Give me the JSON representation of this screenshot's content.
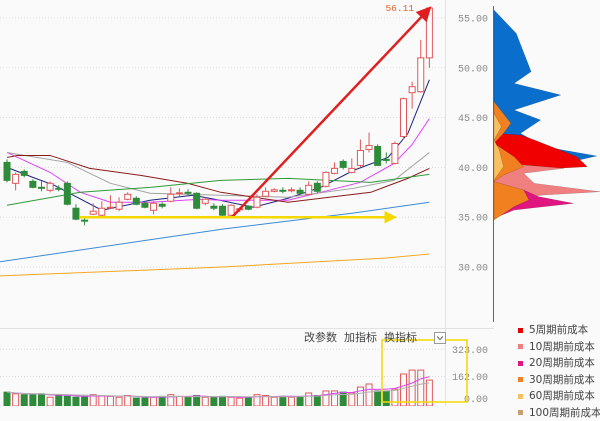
{
  "price_axis": {
    "ticks": [
      "55.00",
      "50.00",
      "45.00",
      "40.00",
      "35.00",
      "30.00"
    ],
    "values": [
      55,
      50,
      45,
      40,
      35,
      30
    ]
  },
  "volume_axis": {
    "ticks": [
      "323.00",
      "162.00",
      "0.00"
    ],
    "values": [
      323,
      162,
      0
    ]
  },
  "high_label": "56.11",
  "toolbar": {
    "modify_params": "改参数",
    "add_indicator": "加指标",
    "switch_indicator": "换指标",
    "dropdown_icon": "chevron-down-icon"
  },
  "legend": [
    {
      "label": "5周期前成本",
      "color": "#e00000"
    },
    {
      "label": "10周期前成本",
      "color": "#f08080"
    },
    {
      "label": "20周期前成本",
      "color": "#e0157f"
    },
    {
      "label": "30周期前成本",
      "color": "#f08020"
    },
    {
      "label": "60周期前成本",
      "color": "#f8c060"
    },
    {
      "label": "100周期前成本",
      "color": "#c8a070"
    }
  ],
  "colors": {
    "up": "#e0575a",
    "down": "#2e8b3a",
    "annotation_red": "#e02020",
    "annotation_yellow": "#f5d800",
    "profile_blue": "#0a6fcc"
  },
  "chart_data": {
    "type": "candlestick",
    "ohlc": [
      [
        40.5,
        40.8,
        38.5,
        38.7
      ],
      [
        38.4,
        39.5,
        37.7,
        39.3
      ],
      [
        39.6,
        39.8,
        39.0,
        39.2
      ],
      [
        38.6,
        38.8,
        37.9,
        38.0
      ],
      [
        38.0,
        38.6,
        37.6,
        37.9
      ],
      [
        37.7,
        38.6,
        37.5,
        38.4
      ],
      [
        37.9,
        38.2,
        37.6,
        37.8
      ],
      [
        38.4,
        38.6,
        36.2,
        36.3
      ],
      [
        35.9,
        36.3,
        34.7,
        34.8
      ],
      [
        34.7,
        35.0,
        34.2,
        34.6
      ],
      [
        35.3,
        36.4,
        35.2,
        35.6
      ],
      [
        35.2,
        36.6,
        35.0,
        35.9
      ],
      [
        35.9,
        37.2,
        35.8,
        36.0
      ],
      [
        35.8,
        37.0,
        35.6,
        36.5
      ],
      [
        36.8,
        37.5,
        36.7,
        37.3
      ],
      [
        36.9,
        37.1,
        36.2,
        36.3
      ],
      [
        36.4,
        36.6,
        35.9,
        36.0
      ],
      [
        35.7,
        36.6,
        35.3,
        36.4
      ],
      [
        36.3,
        36.5,
        35.9,
        36.1
      ],
      [
        36.6,
        38.0,
        36.5,
        37.3
      ],
      [
        37.4,
        37.9,
        37.1,
        37.45
      ],
      [
        37.5,
        37.8,
        37.2,
        37.45
      ],
      [
        37.4,
        37.5,
        35.8,
        35.9
      ],
      [
        36.4,
        37.0,
        36.2,
        36.8
      ],
      [
        36.1,
        36.4,
        35.7,
        35.9
      ],
      [
        36.1,
        36.3,
        35.0,
        35.2
      ],
      [
        35.2,
        36.3,
        35.1,
        36.2
      ],
      [
        35.8,
        36.0,
        35.5,
        35.85
      ],
      [
        36.1,
        36.2,
        35.7,
        35.8
      ],
      [
        36.0,
        37.3,
        35.9,
        37.0
      ],
      [
        37.1,
        38.0,
        37.0,
        37.6
      ],
      [
        37.6,
        37.9,
        37.5,
        37.75
      ],
      [
        37.7,
        38.0,
        37.4,
        37.65
      ],
      [
        37.7,
        38.0,
        37.5,
        37.75
      ],
      [
        37.7,
        38.0,
        37.3,
        37.4
      ],
      [
        37.3,
        38.6,
        37.2,
        38.2
      ],
      [
        38.4,
        38.6,
        37.4,
        37.6
      ],
      [
        38.1,
        39.6,
        38.0,
        39.5
      ],
      [
        39.4,
        40.5,
        39.3,
        39.9
      ],
      [
        40.6,
        40.8,
        39.8,
        40.0
      ],
      [
        39.5,
        40.9,
        39.4,
        39.9
      ],
      [
        40.2,
        42.8,
        40.0,
        41.7
      ],
      [
        41.8,
        43.5,
        41.5,
        42.2
      ],
      [
        42.1,
        42.3,
        40.2,
        40.2
      ],
      [
        40.8,
        41.5,
        40.4,
        40.7
      ],
      [
        40.4,
        42.6,
        40.3,
        42.4
      ],
      [
        43.1,
        47.0,
        42.8,
        46.9
      ],
      [
        47.5,
        48.6,
        45.9,
        48.1
      ],
      [
        47.6,
        52.8,
        47.5,
        51.0
      ],
      [
        51.0,
        56.11,
        50.0,
        56.0
      ]
    ],
    "volume": [
      70,
      60,
      55,
      55,
      60,
      40,
      55,
      45,
      40,
      45,
      55,
      50,
      45,
      40,
      50,
      35,
      35,
      40,
      45,
      55,
      45,
      40,
      50,
      40,
      40,
      45,
      40,
      35,
      40,
      55,
      50,
      40,
      45,
      40,
      45,
      65,
      50,
      77,
      77,
      70,
      65,
      100,
      118,
      77,
      77,
      88,
      177,
      200,
      200,
      141
    ],
    "ma_lines": [
      {
        "color": "#1a237e",
        "points": [
          [
            0,
            40.0
          ],
          [
            3,
            39.0
          ],
          [
            5.5,
            38.2
          ],
          [
            11,
            35.7
          ],
          [
            16.6,
            36.7
          ],
          [
            21.6,
            37.2
          ],
          [
            24.7,
            36.7
          ],
          [
            28.6,
            36.0
          ],
          [
            32.6,
            36.9
          ],
          [
            36.4,
            38.0
          ],
          [
            40.2,
            39.7
          ],
          [
            44.2,
            41.0
          ],
          [
            46.5,
            43.4
          ],
          [
            49,
            48.8
          ]
        ]
      },
      {
        "color": "#e040fb",
        "points": [
          [
            0,
            41.5
          ],
          [
            5,
            39.5
          ],
          [
            8.5,
            37.5
          ],
          [
            12,
            36.5
          ],
          [
            16.6,
            36.5
          ],
          [
            22.4,
            36.8
          ],
          [
            24.8,
            36.7
          ],
          [
            32.6,
            36.7
          ],
          [
            36.4,
            37.5
          ],
          [
            41,
            38.5
          ],
          [
            44.9,
            40.4
          ],
          [
            47,
            42.3
          ],
          [
            49,
            44.9
          ]
        ]
      },
      {
        "color": "#a0a0a0",
        "points": [
          [
            0,
            41.5
          ],
          [
            7,
            40.5
          ],
          [
            12,
            38.4
          ],
          [
            16.6,
            37.4
          ],
          [
            24.8,
            37.2
          ],
          [
            32.6,
            37.0
          ],
          [
            40.2,
            37.9
          ],
          [
            44.9,
            38.7
          ],
          [
            49,
            41.5
          ]
        ]
      },
      {
        "color": "#8b1a1a",
        "points": [
          [
            0,
            41.0
          ],
          [
            1.2,
            41.2
          ],
          [
            5,
            41.2
          ],
          [
            9.6,
            39.9
          ],
          [
            15.5,
            39.2
          ],
          [
            21,
            38.4
          ],
          [
            24.8,
            37.5
          ],
          [
            32.6,
            36.5
          ],
          [
            42.2,
            37.5
          ],
          [
            46.5,
            38.9
          ],
          [
            49,
            39.9
          ]
        ]
      },
      {
        "color": "#2e9b3a",
        "points": [
          [
            0,
            36.2
          ],
          [
            8.5,
            37.5
          ],
          [
            16.6,
            38.0
          ],
          [
            24.8,
            38.7
          ],
          [
            32.6,
            38.9
          ],
          [
            42.2,
            38.5
          ],
          [
            49,
            39.3
          ]
        ]
      },
      {
        "color": "#3a8ad8",
        "points": [
          [
            -1,
            30.5
          ],
          [
            25,
            33.8
          ],
          [
            40,
            35.4
          ],
          [
            49,
            36.5
          ]
        ]
      },
      {
        "color": "#f5a623",
        "points": [
          [
            -1,
            29.1
          ],
          [
            25,
            30.0
          ],
          [
            44,
            30.9
          ],
          [
            49,
            31.3
          ]
        ]
      }
    ],
    "cost_profile": [
      {
        "color": "#0a6fcc",
        "points": [
          [
            55.8,
            0
          ],
          [
            53.46,
            0.21
          ],
          [
            49.61,
            0.35
          ],
          [
            48.44,
            0.19
          ],
          [
            47.27,
            0.63
          ],
          [
            45.76,
            0.19
          ],
          [
            44.76,
            0.44
          ],
          [
            43.42,
            0.25
          ],
          [
            42.08,
            0.47
          ],
          [
            41.14,
            0.97
          ],
          [
            40.41,
            0.66
          ],
          [
            39.57,
            0
          ]
        ]
      },
      {
        "color": "#f00000",
        "points": [
          [
            43.42,
            0
          ],
          [
            43.25,
            0.25
          ],
          [
            42.75,
            0.38
          ],
          [
            41.08,
            0.78
          ],
          [
            40.07,
            0.88
          ],
          [
            39.57,
            0
          ]
        ]
      },
      {
        "color": "#f08080",
        "points": [
          [
            40.6,
            0
          ],
          [
            40.41,
            0.09
          ],
          [
            39.91,
            0.66
          ],
          [
            39.41,
            0.28
          ],
          [
            38.4,
            0.38
          ],
          [
            37.56,
            1.0
          ],
          [
            37.23,
            0.47
          ],
          [
            36.73,
            0
          ]
        ]
      },
      {
        "color": "#e0157f",
        "points": [
          [
            37.9,
            0
          ],
          [
            37.73,
            0.28
          ],
          [
            37.06,
            0.42
          ],
          [
            36.39,
            0.75
          ],
          [
            35.72,
            0.19
          ],
          [
            34.89,
            0
          ]
        ]
      },
      {
        "color": "#f08020",
        "points": [
          [
            46.6,
            0
          ],
          [
            44.43,
            0.16
          ],
          [
            43.42,
            0.09
          ],
          [
            42.42,
            0
          ],
          [
            41.08,
            0.19
          ],
          [
            40.07,
            0.28
          ],
          [
            39.24,
            0.09
          ],
          [
            38.57,
            0
          ],
          [
            37.73,
            0.28
          ],
          [
            36.73,
            0.33
          ],
          [
            36.06,
            0.19
          ],
          [
            34.72,
            0
          ]
        ]
      },
      {
        "color": "#f8c060",
        "points": [
          [
            45.43,
            0
          ],
          [
            44.09,
            0.07
          ],
          [
            42.75,
            0
          ],
          [
            41.75,
            0.05
          ],
          [
            40.07,
            0.09
          ],
          [
            38.73,
            0
          ]
        ]
      }
    ],
    "annotations": {
      "red_arrow_from_price": 35.0,
      "red_arrow_to_price": 56.11,
      "yellow_arrow_price": 35.0
    }
  }
}
